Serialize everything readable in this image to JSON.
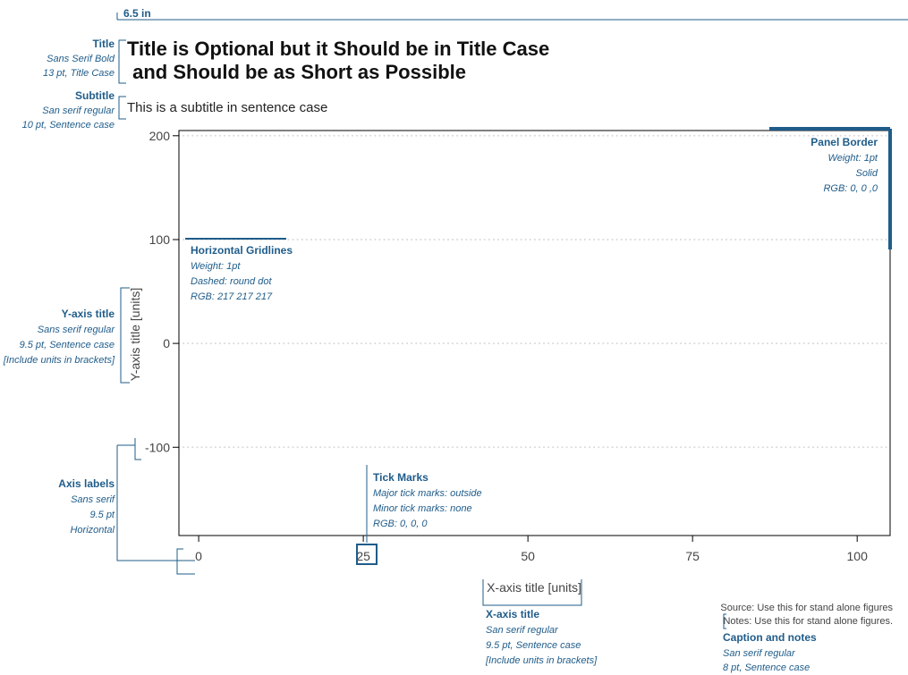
{
  "colors": {
    "annotation": "#1f5c8a",
    "axis": "#444444",
    "gridline": "#d9d9d9",
    "border": "#000000",
    "text": "#111111"
  },
  "width_label": "6.5 in",
  "title": {
    "line1": "Title is Optional but it Should be in Title Case",
    "line2": " and Should be as Short as Possible"
  },
  "subtitle": "This is a subtitle in sentence case",
  "annotations": {
    "title": {
      "heading": "Title",
      "lines": [
        "Sans Serif Bold",
        "13 pt, Title Case"
      ]
    },
    "subtitle": {
      "heading": "Subtitle",
      "lines": [
        "San serif regular",
        "10 pt, Sentence case"
      ]
    },
    "yaxis_title": {
      "heading": "Y-axis title",
      "lines": [
        "Sans serif regular",
        "9.5 pt, Sentence case",
        "[Include units in brackets]"
      ]
    },
    "axis_labels": {
      "heading": "Axis labels",
      "lines": [
        "Sans serif",
        "9.5 pt",
        "Horizontal"
      ]
    },
    "panel_border": {
      "heading": "Panel Border",
      "lines": [
        "Weight: 1pt",
        "Solid",
        "RGB: 0, 0 ,0"
      ]
    },
    "gridlines": {
      "heading": "Horizontal Gridlines",
      "lines": [
        "Weight: 1pt",
        "Dashed: round dot",
        "RGB: 217 217 217"
      ]
    },
    "tick_marks": {
      "heading": "Tick Marks",
      "lines": [
        "Major tick marks: outside",
        "Minor tick marks: none",
        "RGB: 0, 0, 0"
      ]
    },
    "xaxis_title": {
      "heading": "X-axis title",
      "lines": [
        "San serif regular",
        "9.5 pt, Sentence case",
        "[Include units in brackets]"
      ]
    },
    "caption": {
      "heading": "Caption and notes",
      "lines": [
        "San serif regular",
        "8 pt, Sentence case"
      ]
    }
  },
  "caption": {
    "source": "Source: Use this for stand alone figures",
    "notes": "Notes: Use this for stand alone figures."
  },
  "chart_data": {
    "type": "scatter",
    "series": [],
    "xlabel": "X-axis title [units]",
    "ylabel": "Y-axis title [units]",
    "xlim": [
      -3,
      105
    ],
    "ylim": [
      -185,
      205
    ],
    "xticks": [
      0,
      25,
      50,
      75,
      100
    ],
    "yticks": [
      -100,
      0,
      100,
      200
    ],
    "xtick_labels": [
      "0",
      "25",
      "50",
      "75",
      "100"
    ],
    "ytick_labels": [
      "-100",
      "0",
      "100",
      "200"
    ],
    "grid": "horizontal dotted"
  }
}
